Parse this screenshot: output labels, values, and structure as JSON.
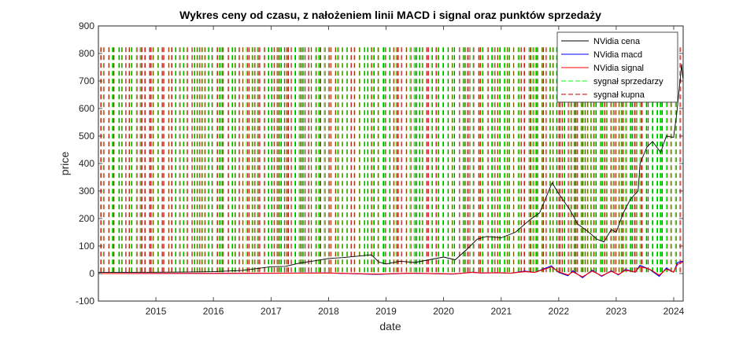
{
  "chart_data": {
    "type": "line",
    "title": "Wykres ceny od czasu, z nałożeniem linii MACD i signal oraz punktów sprzedaży",
    "xlabel": "date",
    "ylabel": "price",
    "xlim": [
      "2014-01-01",
      "2024-03-01"
    ],
    "ylim": [
      -100,
      900
    ],
    "x_ticks": [
      "2015",
      "2016",
      "2017",
      "2018",
      "2019",
      "2020",
      "2021",
      "2022",
      "2023",
      "2024"
    ],
    "y_ticks": [
      -100,
      0,
      100,
      200,
      300,
      400,
      500,
      600,
      700,
      800,
      900
    ],
    "grid": false,
    "legend_position": "top-right",
    "colors": {
      "price": "#000000",
      "macd": "#0000ff",
      "signal": "#ff0000",
      "sell_signal": "#00ff00",
      "buy_signal": "#c00000"
    },
    "series": [
      {
        "name": "NVidia cena",
        "key": "price",
        "points": [
          [
            "2014-01-01",
            4
          ],
          [
            "2014-07-01",
            4.5
          ],
          [
            "2015-01-01",
            5
          ],
          [
            "2015-07-01",
            5.5
          ],
          [
            "2016-01-01",
            7
          ],
          [
            "2016-07-01",
            11
          ],
          [
            "2017-01-01",
            25
          ],
          [
            "2017-04-01",
            26
          ],
          [
            "2017-07-01",
            38
          ],
          [
            "2017-10-01",
            46
          ],
          [
            "2018-01-01",
            55
          ],
          [
            "2018-04-01",
            58
          ],
          [
            "2018-07-01",
            63
          ],
          [
            "2018-10-01",
            68
          ],
          [
            "2018-11-15",
            42
          ],
          [
            "2019-01-01",
            35
          ],
          [
            "2019-04-01",
            45
          ],
          [
            "2019-07-01",
            40
          ],
          [
            "2019-10-01",
            50
          ],
          [
            "2020-01-01",
            60
          ],
          [
            "2020-03-15",
            50
          ],
          [
            "2020-06-01",
            90
          ],
          [
            "2020-08-01",
            125
          ],
          [
            "2020-10-01",
            135
          ],
          [
            "2021-01-01",
            130
          ],
          [
            "2021-04-01",
            150
          ],
          [
            "2021-07-01",
            195
          ],
          [
            "2021-09-01",
            220
          ],
          [
            "2021-11-20",
            330
          ],
          [
            "2022-01-01",
            290
          ],
          [
            "2022-03-15",
            230
          ],
          [
            "2022-05-01",
            180
          ],
          [
            "2022-07-01",
            155
          ],
          [
            "2022-09-01",
            125
          ],
          [
            "2022-10-15",
            115
          ],
          [
            "2022-12-01",
            160
          ],
          [
            "2023-01-01",
            150
          ],
          [
            "2023-02-15",
            220
          ],
          [
            "2023-04-01",
            270
          ],
          [
            "2023-05-20",
            300
          ],
          [
            "2023-06-01",
            400
          ],
          [
            "2023-07-15",
            460
          ],
          [
            "2023-08-20",
            480
          ],
          [
            "2023-10-10",
            440
          ],
          [
            "2023-11-15",
            500
          ],
          [
            "2023-12-31",
            495
          ],
          [
            "2024-01-20",
            580
          ],
          [
            "2024-02-10",
            700
          ],
          [
            "2024-02-20",
            760
          ],
          [
            "2024-02-28",
            710
          ]
        ]
      },
      {
        "name": "NVidia macd",
        "key": "macd",
        "points": [
          [
            "2014-01-01",
            0
          ],
          [
            "2016-01-01",
            0.5
          ],
          [
            "2017-01-01",
            1
          ],
          [
            "2018-01-01",
            2
          ],
          [
            "2018-11-01",
            -3
          ],
          [
            "2019-06-01",
            1
          ],
          [
            "2020-03-01",
            -2
          ],
          [
            "2020-07-01",
            5
          ],
          [
            "2020-09-01",
            2
          ],
          [
            "2020-12-01",
            3
          ],
          [
            "2021-03-01",
            1
          ],
          [
            "2021-06-01",
            9
          ],
          [
            "2021-08-01",
            4
          ],
          [
            "2021-11-15",
            28
          ],
          [
            "2022-01-01",
            4
          ],
          [
            "2022-03-01",
            -8
          ],
          [
            "2022-04-01",
            10
          ],
          [
            "2022-06-01",
            -15
          ],
          [
            "2022-08-01",
            12
          ],
          [
            "2022-10-01",
            -10
          ],
          [
            "2022-12-01",
            10
          ],
          [
            "2023-01-15",
            -5
          ],
          [
            "2023-03-01",
            15
          ],
          [
            "2023-05-01",
            5
          ],
          [
            "2023-06-01",
            30
          ],
          [
            "2023-08-01",
            15
          ],
          [
            "2023-10-01",
            -10
          ],
          [
            "2023-11-15",
            20
          ],
          [
            "2023-12-31",
            5
          ],
          [
            "2024-01-25",
            40
          ],
          [
            "2024-02-28",
            45
          ]
        ]
      },
      {
        "name": "NVidia signal",
        "key": "signal",
        "points": [
          [
            "2014-01-01",
            0
          ],
          [
            "2016-01-01",
            0.5
          ],
          [
            "2017-01-01",
            1
          ],
          [
            "2018-01-01",
            2
          ],
          [
            "2018-11-01",
            -2
          ],
          [
            "2019-06-01",
            1
          ],
          [
            "2020-03-01",
            -1
          ],
          [
            "2020-07-01",
            4
          ],
          [
            "2020-09-01",
            2
          ],
          [
            "2020-12-01",
            3
          ],
          [
            "2021-03-01",
            1
          ],
          [
            "2021-06-01",
            7
          ],
          [
            "2021-08-01",
            4
          ],
          [
            "2021-11-15",
            24
          ],
          [
            "2022-01-01",
            6
          ],
          [
            "2022-03-01",
            -5
          ],
          [
            "2022-04-01",
            6
          ],
          [
            "2022-06-01",
            -12
          ],
          [
            "2022-08-01",
            9
          ],
          [
            "2022-10-01",
            -8
          ],
          [
            "2022-12-01",
            8
          ],
          [
            "2023-01-15",
            -3
          ],
          [
            "2023-03-01",
            12
          ],
          [
            "2023-05-01",
            6
          ],
          [
            "2023-06-01",
            25
          ],
          [
            "2023-08-01",
            16
          ],
          [
            "2023-10-01",
            -6
          ],
          [
            "2023-11-15",
            16
          ],
          [
            "2023-12-31",
            6
          ],
          [
            "2024-01-25",
            33
          ],
          [
            "2024-02-28",
            42
          ]
        ]
      }
    ],
    "signal_series": [
      {
        "name": "sygnał sprzedarzy",
        "key": "sell_signal",
        "dash": "6,4",
        "y_range": [
          0,
          822
        ]
      },
      {
        "name": "sygnał kupna",
        "key": "buy_signal",
        "dash": "6,4",
        "y_range": [
          0,
          822
        ]
      }
    ]
  }
}
